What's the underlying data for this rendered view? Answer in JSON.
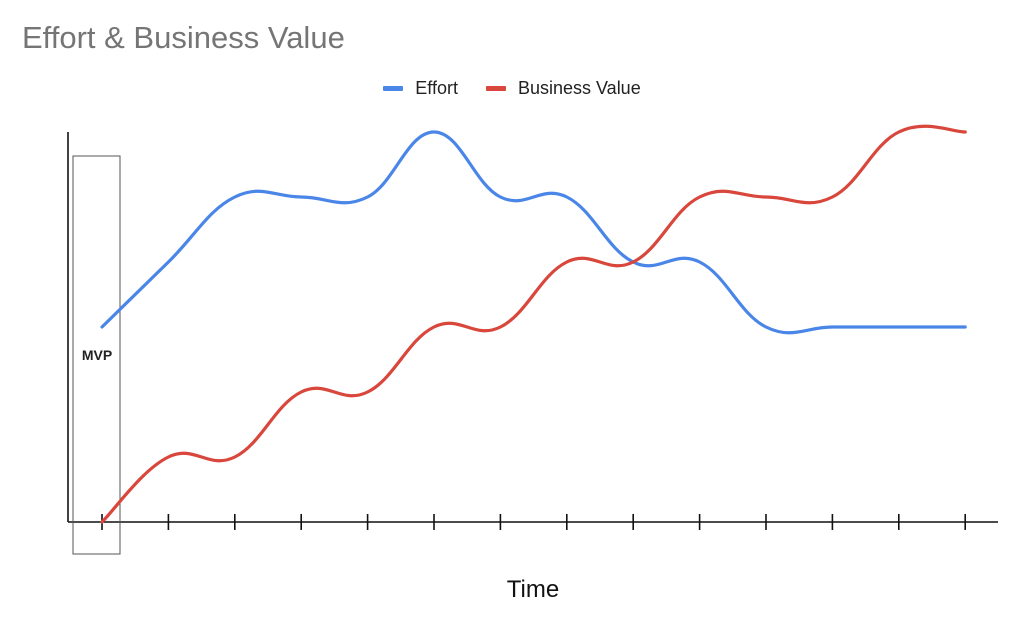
{
  "chart_data": {
    "type": "line",
    "title": "Effort & Business Value",
    "xlabel": "Time",
    "ylabel": "",
    "x": [
      0,
      1,
      2,
      3,
      4,
      5,
      6,
      7,
      8,
      9,
      10,
      11,
      12,
      13
    ],
    "xlim": [
      -0.5,
      13.5
    ],
    "ylim": [
      0,
      6
    ],
    "grid": false,
    "legend_position": "top-center",
    "series": [
      {
        "name": "Effort",
        "color": "#4a86e8",
        "values": [
          3,
          4,
          5,
          5,
          5,
          6,
          5,
          5,
          4,
          4,
          3,
          3,
          3,
          3
        ]
      },
      {
        "name": "Business Value",
        "color": "#d9463b",
        "values": [
          0,
          1,
          1,
          2,
          2,
          3,
          3,
          4,
          4,
          5,
          5,
          5,
          6,
          6
        ]
      }
    ],
    "annotations": [
      {
        "label": "MVP",
        "x": 0
      }
    ]
  }
}
